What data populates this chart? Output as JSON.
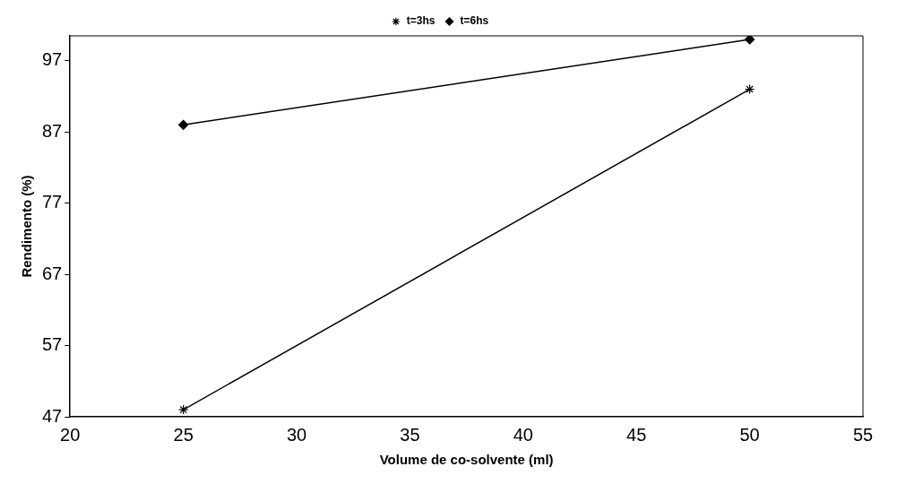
{
  "chart_data": {
    "type": "line",
    "xlabel": "Volume de co-solvente (ml)",
    "ylabel": "Rendimento (%)",
    "x": [
      25,
      50
    ],
    "series": [
      {
        "name": "t=3hs",
        "color": "#000000",
        "values": [
          48,
          93
        ],
        "marker": "cross"
      },
      {
        "name": "t=6hs",
        "color": "#000000",
        "values": [
          88,
          100
        ],
        "marker": "diamond"
      }
    ],
    "xlim": [
      20,
      55
    ],
    "xticks": [
      20,
      25,
      30,
      35,
      40,
      45,
      50,
      55
    ],
    "ylim": [
      47,
      100.5
    ],
    "yticks": [
      47,
      57,
      67,
      77,
      87,
      97
    ],
    "grid": false,
    "legend": "top",
    "line_style": "solid"
  }
}
